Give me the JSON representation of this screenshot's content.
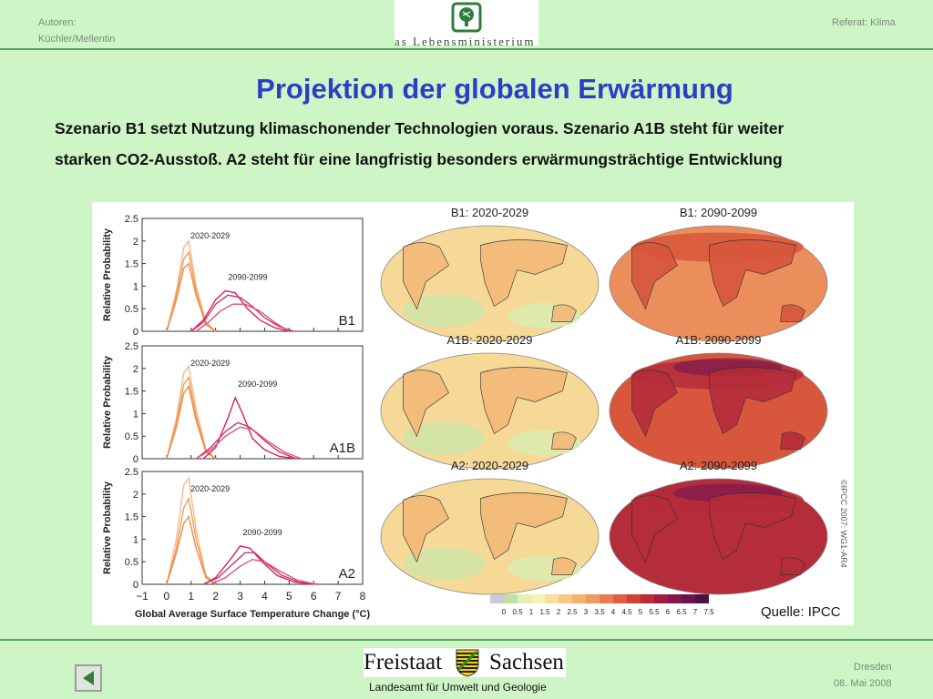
{
  "header": {
    "authors_label": "Autoren:",
    "authors": "Küchler/Mellentin",
    "topic": "Referat: Klima",
    "logo_text": "as Lebensministerium"
  },
  "title": "Projektion der globalen Erwärmung",
  "subtitle_lines": [
    "Szenario B1 setzt Nutzung klimaschonender Technologien voraus. Szenario A1B steht für weiter",
    "starken CO2-Ausstoß. A2 steht für eine langfristig besonders erwärmungsträchtige Entwicklung"
  ],
  "source": "Quelle: IPCC",
  "copyright": "©IPCC 2007: WG1-AR4",
  "footer": {
    "state_left": "Freistaat",
    "state_right": "Sachsen",
    "agency": "Landesamt für Umwelt und Geologie",
    "city": "Dresden",
    "date": "08. Mai 2008"
  },
  "colors": {
    "near_term": "#f0a050",
    "long_term": "#d8205a",
    "title": "#2c3fc4",
    "rule": "#5aa05f"
  },
  "chart_data": [
    {
      "type": "line",
      "scenario": "B1",
      "ylabel": "Relative Probability",
      "xlim": [
        -1,
        8
      ],
      "ylim": [
        0,
        2.5
      ],
      "yticks": [
        "0",
        "0.5",
        "1",
        "1.5",
        "2",
        "2.5"
      ],
      "series": [
        {
          "name": "2020-2029",
          "curves": [
            {
              "x": [
                0,
                0.4,
                0.7,
                0.9,
                1.2,
                1.6,
                2.0
              ],
              "y": [
                0,
                0.9,
                1.85,
                2.0,
                1.0,
                0.2,
                0
              ]
            },
            {
              "x": [
                0,
                0.4,
                0.7,
                0.9,
                1.2,
                1.6,
                2.0
              ],
              "y": [
                0,
                0.8,
                1.6,
                1.75,
                0.9,
                0.2,
                0
              ]
            },
            {
              "x": [
                0,
                0.4,
                0.7,
                0.9,
                1.2,
                1.6,
                2.0
              ],
              "y": [
                0,
                0.7,
                1.4,
                1.5,
                0.8,
                0.15,
                0
              ]
            }
          ]
        },
        {
          "name": "2090-2099",
          "curves": [
            {
              "x": [
                1.0,
                1.5,
                2.0,
                2.4,
                2.8,
                3.3,
                3.8,
                4.4,
                5.0
              ],
              "y": [
                0,
                0.25,
                0.7,
                0.9,
                0.85,
                0.5,
                0.25,
                0.08,
                0
              ]
            },
            {
              "x": [
                1.0,
                1.5,
                2.0,
                2.5,
                3.0,
                3.5,
                4.0,
                4.6,
                5.2
              ],
              "y": [
                0,
                0.2,
                0.6,
                0.8,
                0.75,
                0.55,
                0.3,
                0.1,
                0
              ]
            },
            {
              "x": [
                1.2,
                1.7,
                2.2,
                2.7,
                3.2,
                3.8,
                4.4,
                5.0
              ],
              "y": [
                0,
                0.2,
                0.45,
                0.6,
                0.6,
                0.45,
                0.2,
                0
              ]
            }
          ]
        }
      ]
    },
    {
      "type": "line",
      "scenario": "A1B",
      "ylabel": "Relative Probability",
      "xlim": [
        -1,
        8
      ],
      "ylim": [
        0,
        2.5
      ],
      "yticks": [
        "0",
        "0.5",
        "1",
        "1.5",
        "2",
        "2.5"
      ],
      "series": [
        {
          "name": "2020-2029",
          "curves": [
            {
              "x": [
                0,
                0.4,
                0.7,
                0.9,
                1.2,
                1.6,
                2.0
              ],
              "y": [
                0,
                0.9,
                1.9,
                2.05,
                1.1,
                0.2,
                0
              ]
            },
            {
              "x": [
                0,
                0.4,
                0.7,
                0.9,
                1.2,
                1.6,
                2.0
              ],
              "y": [
                0,
                0.8,
                1.65,
                1.8,
                0.95,
                0.2,
                0
              ]
            },
            {
              "x": [
                0,
                0.4,
                0.7,
                0.9,
                1.2,
                1.6,
                2.0
              ],
              "y": [
                0,
                0.7,
                1.45,
                1.6,
                0.85,
                0.15,
                0
              ]
            }
          ]
        },
        {
          "name": "2090-2099",
          "curves": [
            {
              "x": [
                1.5,
                2.0,
                2.5,
                2.8,
                3.1,
                3.5,
                4.0,
                4.6,
                5.3
              ],
              "y": [
                0,
                0.25,
                0.9,
                1.35,
                1.0,
                0.45,
                0.2,
                0.05,
                0
              ]
            },
            {
              "x": [
                1.2,
                1.8,
                2.4,
                2.9,
                3.4,
                4.0,
                4.6,
                5.3
              ],
              "y": [
                0,
                0.25,
                0.6,
                0.8,
                0.7,
                0.4,
                0.15,
                0
              ]
            },
            {
              "x": [
                1.2,
                1.8,
                2.4,
                3.0,
                3.5,
                4.1,
                4.8,
                5.5
              ],
              "y": [
                0,
                0.2,
                0.5,
                0.7,
                0.65,
                0.4,
                0.15,
                0
              ]
            }
          ]
        }
      ]
    },
    {
      "type": "line",
      "scenario": "A2",
      "ylabel": "Relative Probability",
      "xlim": [
        -1,
        8
      ],
      "ylim": [
        0,
        2.5
      ],
      "yticks": [
        "0",
        "0.5",
        "1",
        "1.5",
        "2",
        "2.5"
      ],
      "xticks": [
        "−1",
        "0",
        "1",
        "2",
        "3",
        "4",
        "5",
        "6",
        "7",
        "8"
      ],
      "xlabel": "Global Average Surface Temperature Change (°C)",
      "series": [
        {
          "name": "2020-2029",
          "curves": [
            {
              "x": [
                0,
                0.4,
                0.7,
                0.9,
                1.2,
                1.6,
                2.0
              ],
              "y": [
                0,
                1.0,
                2.2,
                2.35,
                1.2,
                0.2,
                0
              ]
            },
            {
              "x": [
                0,
                0.4,
                0.7,
                0.9,
                1.2,
                1.6,
                2.0
              ],
              "y": [
                0,
                0.8,
                1.7,
                1.9,
                1.0,
                0.2,
                0
              ]
            },
            {
              "x": [
                0,
                0.4,
                0.7,
                0.9,
                1.2,
                1.6,
                2.0
              ],
              "y": [
                0,
                0.7,
                1.35,
                1.5,
                0.8,
                0.15,
                0
              ]
            }
          ]
        },
        {
          "name": "2090-2099",
          "curves": [
            {
              "x": [
                1.5,
                2.0,
                2.6,
                3.0,
                3.4,
                3.9,
                4.5,
                5.2,
                6.0
              ],
              "y": [
                0,
                0.15,
                0.55,
                0.85,
                0.8,
                0.5,
                0.2,
                0.05,
                0
              ]
            },
            {
              "x": [
                1.5,
                2.1,
                2.7,
                3.2,
                3.6,
                4.1,
                4.7,
                5.4,
                6.2
              ],
              "y": [
                0,
                0.15,
                0.45,
                0.7,
                0.7,
                0.45,
                0.2,
                0.05,
                0
              ]
            },
            {
              "x": [
                1.8,
                2.4,
                3.0,
                3.5,
                4.0,
                4.6,
                5.3,
                6.1
              ],
              "y": [
                0,
                0.15,
                0.4,
                0.55,
                0.5,
                0.3,
                0.1,
                0
              ]
            }
          ]
        }
      ]
    }
  ],
  "maps": [
    {
      "title": "B1: 2020-2029",
      "warmth": 1
    },
    {
      "title": "B1: 2090-2099",
      "warmth": 3
    },
    {
      "title": "A1B: 2020-2029",
      "warmth": 1
    },
    {
      "title": "A1B: 2090-2099",
      "warmth": 4
    },
    {
      "title": "A2: 2020-2029",
      "warmth": 1
    },
    {
      "title": "A2: 2090-2099",
      "warmth": 5
    }
  ],
  "colorbar": {
    "ticks": [
      "0",
      "0.5",
      "1",
      "1.5",
      "2",
      "2.5",
      "3",
      "3.5",
      "4",
      "4.5",
      "5",
      "5.5",
      "6",
      "6.5",
      "7",
      "7.5"
    ],
    "colors": [
      "#c9cbd9",
      "#bfe0a6",
      "#e6f0b4",
      "#f7f1b6",
      "#f8dd9c",
      "#f6c883",
      "#f3b170",
      "#ee9862",
      "#e77c54",
      "#dd5e45",
      "#cf4236",
      "#b92d34",
      "#a01f3e",
      "#85184b",
      "#6a1550",
      "#4a1243"
    ]
  }
}
